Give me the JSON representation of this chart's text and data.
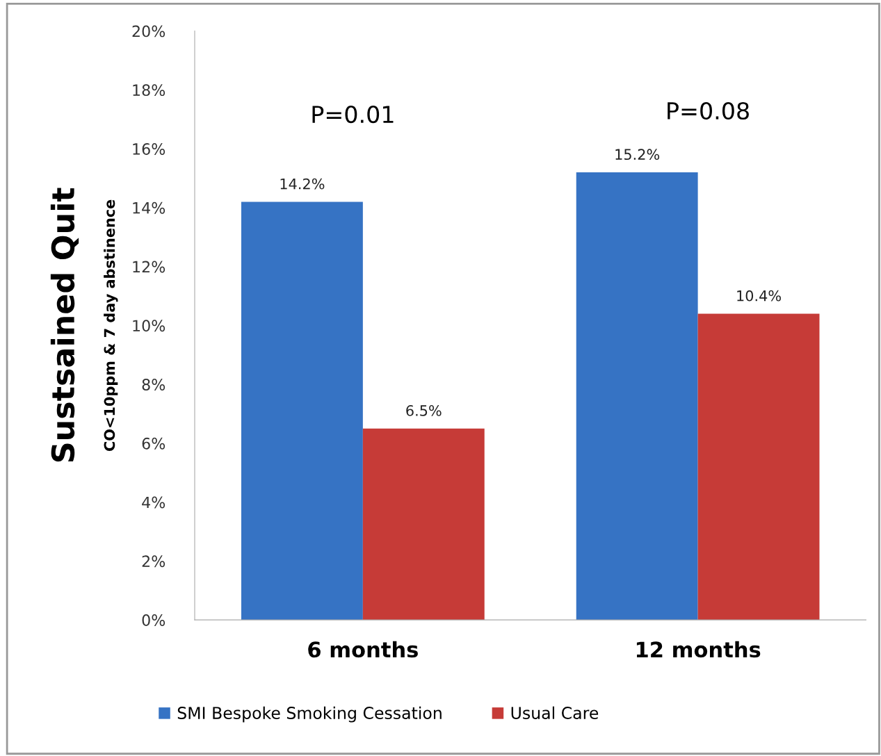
{
  "chart_data": {
    "type": "bar",
    "ylabel": "Sustsained Quit",
    "categories": [
      "6 months",
      "12 months"
    ],
    "series": [
      {
        "name": "SMI Bespoke Smoking Cessation",
        "color": "#3673c4",
        "values": [
          14.2,
          15.2
        ],
        "value_labels": [
          "14.2%",
          "15.2%"
        ]
      },
      {
        "name": "Usual Care",
        "color": "#c63b37",
        "values": [
          6.5,
          10.4
        ],
        "value_labels": [
          "6.5%",
          "10.4%"
        ]
      }
    ],
    "ylim": [
      0,
      20
    ],
    "yticks": [
      {
        "value": 0,
        "label": "0%"
      },
      {
        "value": 2,
        "label": "2%"
      },
      {
        "value": 4,
        "label": "4%"
      },
      {
        "value": 6,
        "label": "6%"
      },
      {
        "value": 8,
        "label": "8%"
      },
      {
        "value": 10,
        "label": "10%"
      },
      {
        "value": 12,
        "label": "12%"
      },
      {
        "value": 14,
        "label": "14%"
      },
      {
        "value": 16,
        "label": "16%"
      },
      {
        "value": 18,
        "label": "18%"
      },
      {
        "value": 20,
        "label": "20%"
      }
    ],
    "annotations": [
      "CO<10ppm & 7 day abstinence",
      "P=0.01",
      "P=0.08"
    ],
    "grid": false,
    "legend": "bottom"
  }
}
